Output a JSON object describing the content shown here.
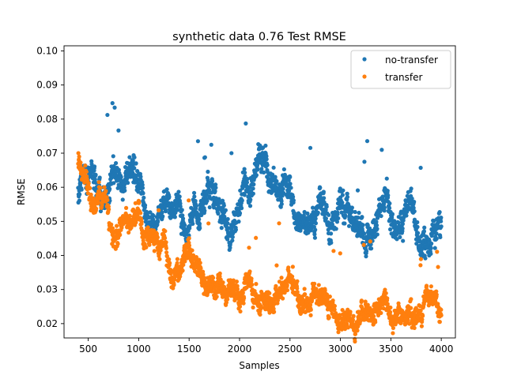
{
  "chart_data": {
    "type": "scatter",
    "title": "synthetic data 0.76 Test RMSE",
    "xlabel": "Samples",
    "ylabel": "RMSE",
    "xlim": [
      260,
      4140
    ],
    "ylim": [
      0.0158,
      0.1015
    ],
    "xticks": [
      500,
      1000,
      1500,
      2000,
      2500,
      3000,
      3500,
      4000
    ],
    "yticks": [
      0.02,
      0.03,
      0.04,
      0.05,
      0.06,
      0.07,
      0.08,
      0.09,
      0.1
    ],
    "ytick_labels": [
      "0.02",
      "0.03",
      "0.04",
      "0.05",
      "0.06",
      "0.07",
      "0.08",
      "0.09",
      "0.10"
    ],
    "grid": false,
    "legend": {
      "position": "top-right"
    },
    "series": [
      {
        "name": "no-transfer",
        "color": "#1f77b4",
        "x_range": [
          400,
          4000
        ],
        "x_step": 2,
        "trend": [
          [
            400,
            0.058
          ],
          [
            450,
            0.065
          ],
          [
            500,
            0.062
          ],
          [
            550,
            0.064
          ],
          [
            600,
            0.06
          ],
          [
            650,
            0.057
          ],
          [
            700,
            0.06
          ],
          [
            750,
            0.062
          ],
          [
            800,
            0.063
          ],
          [
            850,
            0.06
          ],
          [
            900,
            0.064
          ],
          [
            950,
            0.067
          ],
          [
            1000,
            0.062
          ],
          [
            1050,
            0.055
          ],
          [
            1100,
            0.048
          ],
          [
            1150,
            0.046
          ],
          [
            1200,
            0.051
          ],
          [
            1250,
            0.055
          ],
          [
            1300,
            0.057
          ],
          [
            1350,
            0.051
          ],
          [
            1400,
            0.055
          ],
          [
            1450,
            0.049
          ],
          [
            1500,
            0.048
          ],
          [
            1550,
            0.054
          ],
          [
            1600,
            0.051
          ],
          [
            1650,
            0.056
          ],
          [
            1700,
            0.06
          ],
          [
            1750,
            0.058
          ],
          [
            1800,
            0.054
          ],
          [
            1850,
            0.051
          ],
          [
            1900,
            0.045
          ],
          [
            1950,
            0.049
          ],
          [
            2000,
            0.056
          ],
          [
            2050,
            0.06
          ],
          [
            2100,
            0.058
          ],
          [
            2150,
            0.064
          ],
          [
            2200,
            0.07
          ],
          [
            2250,
            0.068
          ],
          [
            2300,
            0.062
          ],
          [
            2350,
            0.06
          ],
          [
            2400,
            0.055
          ],
          [
            2450,
            0.063
          ],
          [
            2500,
            0.06
          ],
          [
            2550,
            0.052
          ],
          [
            2600,
            0.05
          ],
          [
            2650,
            0.048
          ],
          [
            2700,
            0.047
          ],
          [
            2750,
            0.05
          ],
          [
            2800,
            0.055
          ],
          [
            2850,
            0.053
          ],
          [
            2900,
            0.048
          ],
          [
            2950,
            0.05
          ],
          [
            3000,
            0.056
          ],
          [
            3050,
            0.055
          ],
          [
            3100,
            0.052
          ],
          [
            3150,
            0.049
          ],
          [
            3200,
            0.048
          ],
          [
            3250,
            0.044
          ],
          [
            3300,
            0.045
          ],
          [
            3350,
            0.05
          ],
          [
            3400,
            0.057
          ],
          [
            3450,
            0.06
          ],
          [
            3500,
            0.05
          ],
          [
            3550,
            0.046
          ],
          [
            3600,
            0.049
          ],
          [
            3650,
            0.053
          ],
          [
            3700,
            0.055
          ],
          [
            3750,
            0.048
          ],
          [
            3800,
            0.043
          ],
          [
            3850,
            0.042
          ],
          [
            3900,
            0.045
          ],
          [
            3950,
            0.047
          ],
          [
            4000,
            0.049
          ]
        ],
        "spread": 0.0045
      },
      {
        "name": "transfer",
        "color": "#ff7f0e",
        "x_range": [
          400,
          4000
        ],
        "x_step": 2,
        "trend": [
          [
            400,
            0.068
          ],
          [
            450,
            0.062
          ],
          [
            500,
            0.06
          ],
          [
            550,
            0.055
          ],
          [
            600,
            0.056
          ],
          [
            650,
            0.058
          ],
          [
            700,
            0.052
          ],
          [
            750,
            0.043
          ],
          [
            800,
            0.046
          ],
          [
            850,
            0.053
          ],
          [
            900,
            0.049
          ],
          [
            950,
            0.051
          ],
          [
            1000,
            0.055
          ],
          [
            1050,
            0.044
          ],
          [
            1100,
            0.046
          ],
          [
            1150,
            0.044
          ],
          [
            1200,
            0.042
          ],
          [
            1250,
            0.046
          ],
          [
            1300,
            0.037
          ],
          [
            1350,
            0.033
          ],
          [
            1400,
            0.035
          ],
          [
            1450,
            0.04
          ],
          [
            1500,
            0.043
          ],
          [
            1550,
            0.037
          ],
          [
            1600,
            0.036
          ],
          [
            1650,
            0.032
          ],
          [
            1700,
            0.031
          ],
          [
            1750,
            0.03
          ],
          [
            1800,
            0.031
          ],
          [
            1850,
            0.029
          ],
          [
            1900,
            0.03
          ],
          [
            1950,
            0.028
          ],
          [
            2000,
            0.027
          ],
          [
            2050,
            0.031
          ],
          [
            2100,
            0.033
          ],
          [
            2150,
            0.027
          ],
          [
            2200,
            0.025
          ],
          [
            2250,
            0.026
          ],
          [
            2300,
            0.025
          ],
          [
            2350,
            0.026
          ],
          [
            2400,
            0.029
          ],
          [
            2450,
            0.032
          ],
          [
            2500,
            0.033
          ],
          [
            2550,
            0.03
          ],
          [
            2600,
            0.027
          ],
          [
            2650,
            0.025
          ],
          [
            2700,
            0.026
          ],
          [
            2750,
            0.029
          ],
          [
            2800,
            0.028
          ],
          [
            2850,
            0.027
          ],
          [
            2900,
            0.025
          ],
          [
            2950,
            0.023
          ],
          [
            3000,
            0.021
          ],
          [
            3050,
            0.022
          ],
          [
            3100,
            0.021
          ],
          [
            3150,
            0.02
          ],
          [
            3200,
            0.022
          ],
          [
            3250,
            0.023
          ],
          [
            3300,
            0.022
          ],
          [
            3350,
            0.024
          ],
          [
            3400,
            0.025
          ],
          [
            3450,
            0.026
          ],
          [
            3500,
            0.023
          ],
          [
            3550,
            0.022
          ],
          [
            3600,
            0.023
          ],
          [
            3650,
            0.022
          ],
          [
            3700,
            0.023
          ],
          [
            3750,
            0.022
          ],
          [
            3800,
            0.024
          ],
          [
            3850,
            0.028
          ],
          [
            3900,
            0.029
          ],
          [
            3950,
            0.025
          ],
          [
            4000,
            0.022
          ]
        ],
        "spread": 0.0035
      }
    ]
  }
}
